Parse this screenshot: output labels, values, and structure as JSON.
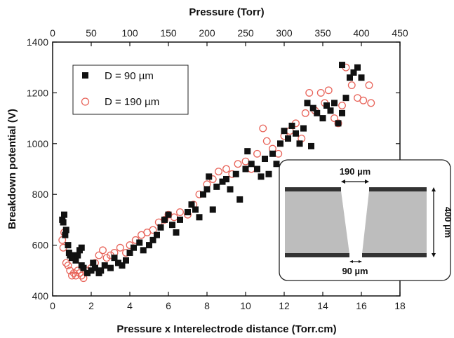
{
  "chart_data": {
    "type": "scatter",
    "xlabel": "Pressure x Interelectrode distance (Torr.cm)",
    "x2label": "Pressure (Torr)",
    "ylabel": "Breakdown potential (V)",
    "xlim": [
      0,
      18
    ],
    "x2lim": [
      0,
      450
    ],
    "ylim": [
      400,
      1400
    ],
    "xticks": [
      0,
      2,
      4,
      6,
      8,
      10,
      12,
      14,
      16,
      18
    ],
    "x2ticks": [
      0,
      50,
      100,
      150,
      200,
      250,
      300,
      350,
      400,
      450
    ],
    "yticks": [
      400,
      600,
      800,
      1000,
      1200,
      1400
    ],
    "grid": false,
    "legend_position": "top-left",
    "series": [
      {
        "name": "D = 90 µm",
        "marker": "filled-square",
        "color": "#111111",
        "points": [
          [
            0.5,
            700
          ],
          [
            0.6,
            720
          ],
          [
            0.55,
            690
          ],
          [
            0.7,
            660
          ],
          [
            0.65,
            640
          ],
          [
            0.8,
            600
          ],
          [
            0.85,
            570
          ],
          [
            0.9,
            560
          ],
          [
            1.0,
            550
          ],
          [
            1.1,
            560
          ],
          [
            1.2,
            540
          ],
          [
            1.3,
            560
          ],
          [
            1.4,
            580
          ],
          [
            1.5,
            590
          ],
          [
            1.5,
            520
          ],
          [
            1.6,
            510
          ],
          [
            1.8,
            490
          ],
          [
            2.0,
            500
          ],
          [
            2.1,
            530
          ],
          [
            2.2,
            510
          ],
          [
            2.4,
            490
          ],
          [
            2.5,
            500
          ],
          [
            2.7,
            520
          ],
          [
            3.0,
            510
          ],
          [
            3.2,
            550
          ],
          [
            3.4,
            530
          ],
          [
            3.6,
            520
          ],
          [
            3.8,
            540
          ],
          [
            4.0,
            570
          ],
          [
            4.2,
            590
          ],
          [
            4.5,
            610
          ],
          [
            4.7,
            580
          ],
          [
            5.0,
            600
          ],
          [
            5.2,
            620
          ],
          [
            5.4,
            640
          ],
          [
            5.6,
            670
          ],
          [
            5.8,
            700
          ],
          [
            6.0,
            720
          ],
          [
            6.2,
            680
          ],
          [
            6.4,
            650
          ],
          [
            6.6,
            700
          ],
          [
            7.0,
            730
          ],
          [
            7.2,
            760
          ],
          [
            7.4,
            740
          ],
          [
            7.6,
            710
          ],
          [
            7.8,
            800
          ],
          [
            8.0,
            820
          ],
          [
            8.1,
            870
          ],
          [
            8.3,
            740
          ],
          [
            8.5,
            830
          ],
          [
            8.8,
            850
          ],
          [
            9.0,
            860
          ],
          [
            9.2,
            820
          ],
          [
            9.5,
            880
          ],
          [
            9.7,
            780
          ],
          [
            10.0,
            900
          ],
          [
            10.1,
            970
          ],
          [
            10.3,
            920
          ],
          [
            10.6,
            900
          ],
          [
            10.8,
            870
          ],
          [
            11.0,
            940
          ],
          [
            11.2,
            880
          ],
          [
            11.4,
            960
          ],
          [
            11.6,
            920
          ],
          [
            11.8,
            1000
          ],
          [
            12.0,
            1050
          ],
          [
            12.2,
            1020
          ],
          [
            12.4,
            1070
          ],
          [
            12.6,
            1040
          ],
          [
            12.8,
            1000
          ],
          [
            13.0,
            1060
          ],
          [
            13.2,
            1160
          ],
          [
            13.4,
            990
          ],
          [
            13.5,
            1140
          ],
          [
            13.7,
            1120
          ],
          [
            14.0,
            1100
          ],
          [
            14.2,
            1150
          ],
          [
            14.4,
            1130
          ],
          [
            14.6,
            1160
          ],
          [
            14.8,
            1080
          ],
          [
            15.0,
            1120
          ],
          [
            15.0,
            1310
          ],
          [
            15.2,
            1180
          ],
          [
            15.4,
            1260
          ],
          [
            15.6,
            1280
          ],
          [
            15.8,
            1300
          ],
          [
            16.0,
            1260
          ]
        ]
      },
      {
        "name": "D = 190 µm",
        "marker": "open-circle",
        "color": "#e8645a",
        "points": [
          [
            0.5,
            620
          ],
          [
            0.6,
            650
          ],
          [
            0.55,
            590
          ],
          [
            0.7,
            530
          ],
          [
            0.8,
            520
          ],
          [
            0.9,
            500
          ],
          [
            1.0,
            480
          ],
          [
            1.1,
            490
          ],
          [
            1.2,
            480
          ],
          [
            1.3,
            500
          ],
          [
            1.4,
            490
          ],
          [
            1.5,
            480
          ],
          [
            1.6,
            470
          ],
          [
            1.8,
            500
          ],
          [
            2.0,
            510
          ],
          [
            2.2,
            530
          ],
          [
            2.4,
            560
          ],
          [
            2.6,
            580
          ],
          [
            2.8,
            550
          ],
          [
            3.0,
            560
          ],
          [
            3.2,
            570
          ],
          [
            3.5,
            590
          ],
          [
            3.8,
            570
          ],
          [
            4.0,
            600
          ],
          [
            4.3,
            620
          ],
          [
            4.6,
            640
          ],
          [
            4.9,
            650
          ],
          [
            5.2,
            660
          ],
          [
            5.5,
            690
          ],
          [
            5.8,
            700
          ],
          [
            6.0,
            720
          ],
          [
            6.3,
            710
          ],
          [
            6.6,
            730
          ],
          [
            7.0,
            720
          ],
          [
            7.3,
            760
          ],
          [
            7.6,
            800
          ],
          [
            8.0,
            840
          ],
          [
            8.3,
            860
          ],
          [
            8.6,
            890
          ],
          [
            9.0,
            900
          ],
          [
            9.3,
            880
          ],
          [
            9.6,
            920
          ],
          [
            10.0,
            930
          ],
          [
            10.3,
            900
          ],
          [
            10.6,
            960
          ],
          [
            10.9,
            1060
          ],
          [
            11.1,
            1010
          ],
          [
            11.4,
            980
          ],
          [
            11.7,
            960
          ],
          [
            12.0,
            1030
          ],
          [
            12.3,
            1050
          ],
          [
            12.6,
            1080
          ],
          [
            12.9,
            1020
          ],
          [
            13.1,
            1120
          ],
          [
            13.3,
            1200
          ],
          [
            13.6,
            1130
          ],
          [
            13.9,
            1200
          ],
          [
            14.1,
            1160
          ],
          [
            14.3,
            1210
          ],
          [
            14.6,
            1100
          ],
          [
            14.8,
            1080
          ],
          [
            15.0,
            1150
          ],
          [
            15.2,
            1300
          ],
          [
            15.5,
            1230
          ],
          [
            15.8,
            1180
          ],
          [
            16.1,
            1170
          ],
          [
            16.4,
            1230
          ],
          [
            16.5,
            1160
          ]
        ]
      }
    ],
    "inset": {
      "top_label": "190 µm",
      "bottom_label": "90 µm",
      "side_label": "400 µm"
    }
  }
}
